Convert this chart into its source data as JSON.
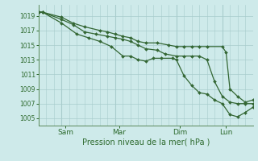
{
  "title": "Pression niveau de la mer( hPa )",
  "ylabel_ticks": [
    1005,
    1007,
    1009,
    1011,
    1013,
    1015,
    1017,
    1019
  ],
  "ylim": [
    1004.0,
    1020.5
  ],
  "xlim": [
    0,
    28
  ],
  "background_color": "#ceeaea",
  "grid_color": "#a8cccc",
  "line_color": "#336633",
  "marker_color": "#336633",
  "x_ticks": [
    3.5,
    10.5,
    18.5,
    24.5
  ],
  "x_tick_labels": [
    "Sam",
    "Mar",
    "Dim",
    "Lun"
  ],
  "x_vlines": [
    3,
    10,
    18,
    24
  ],
  "series": [
    {
      "x": [
        0,
        0.5,
        3,
        4.5,
        6,
        8,
        9,
        10,
        11,
        12,
        13,
        14,
        15.5,
        17,
        18,
        19,
        20,
        21,
        22,
        24,
        24.5,
        25,
        26,
        27,
        28
      ],
      "y": [
        1019.5,
        1019.5,
        1018.8,
        1018.0,
        1017.5,
        1017.0,
        1016.8,
        1016.5,
        1016.2,
        1016.0,
        1015.5,
        1015.3,
        1015.3,
        1015.0,
        1014.8,
        1014.8,
        1014.8,
        1014.8,
        1014.8,
        1014.8,
        1014.0,
        1009.0,
        1008.0,
        1007.2,
        1007.5
      ]
    },
    {
      "x": [
        0,
        0.5,
        3,
        4.5,
        6,
        7.5,
        9,
        10,
        11,
        12,
        13,
        14,
        15.5,
        16.5,
        18,
        19,
        20,
        21,
        22,
        23,
        24,
        25,
        26,
        27,
        28
      ],
      "y": [
        1019.5,
        1019.5,
        1018.5,
        1017.8,
        1016.8,
        1016.5,
        1016.2,
        1016.0,
        1015.8,
        1015.5,
        1015.0,
        1014.5,
        1014.3,
        1013.8,
        1013.5,
        1013.5,
        1013.5,
        1013.5,
        1013.0,
        1010.0,
        1008.0,
        1007.2,
        1007.0,
        1007.0,
        1007.0
      ]
    },
    {
      "x": [
        0,
        0.5,
        3,
        5,
        6.5,
        8,
        9.5,
        11,
        12,
        13,
        14,
        15,
        16,
        17.5,
        18,
        19,
        20,
        21,
        22,
        23,
        24,
        25,
        26,
        27,
        28
      ],
      "y": [
        1019.5,
        1019.5,
        1018.0,
        1016.5,
        1016.0,
        1015.5,
        1014.8,
        1013.5,
        1013.5,
        1013.0,
        1012.8,
        1013.2,
        1013.2,
        1013.2,
        1013.0,
        1010.8,
        1009.5,
        1008.5,
        1008.3,
        1007.5,
        1007.0,
        1005.5,
        1005.2,
        1005.8,
        1006.5
      ]
    }
  ]
}
